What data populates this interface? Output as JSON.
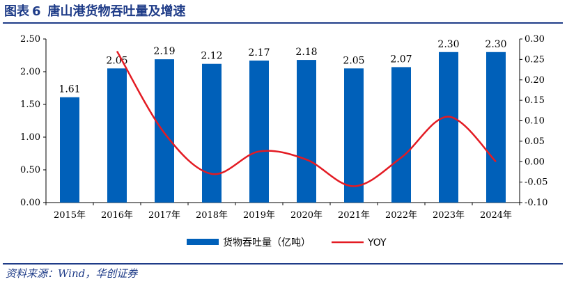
{
  "figure": {
    "label": "图表",
    "number": "6",
    "title": "唐山港货物吞吐量及增速"
  },
  "source": "资料来源：Wind，华创证券",
  "colors": {
    "bar": "#0060B9",
    "line": "#E31B23",
    "rule": "#1f3c88"
  },
  "chart_data": {
    "type": "bar",
    "categories": [
      "2015年",
      "2016年",
      "2017年",
      "2018年",
      "2019年",
      "2020年",
      "2021年",
      "2022年",
      "2023年",
      "2024年"
    ],
    "series": [
      {
        "name": "货物吞吐量（亿吨）",
        "type": "bar",
        "axis": "left",
        "values": [
          1.61,
          2.05,
          2.19,
          2.12,
          2.17,
          2.18,
          2.05,
          2.07,
          2.3,
          2.3
        ],
        "labels": [
          "1.61",
          "2.05",
          "2.19",
          "2.12",
          "2.17",
          "2.18",
          "2.05",
          "2.07",
          "2.30",
          "2.30"
        ]
      },
      {
        "name": "YOY",
        "type": "line",
        "axis": "right",
        "values": [
          null,
          0.27,
          0.07,
          -0.03,
          0.025,
          0.005,
          -0.06,
          0.01,
          0.11,
          0.0
        ]
      }
    ],
    "yleft": {
      "lim": [
        0,
        2.5
      ],
      "ticks": [
        "0.00",
        "0.50",
        "1.00",
        "1.50",
        "2.00",
        "2.50"
      ]
    },
    "yright": {
      "lim": [
        -0.1,
        0.3
      ],
      "ticks": [
        "-0.10",
        "-0.05",
        "0.00",
        "0.05",
        "0.10",
        "0.15",
        "0.20",
        "0.25",
        "0.30"
      ]
    },
    "legend": "bottom",
    "grid": false
  }
}
